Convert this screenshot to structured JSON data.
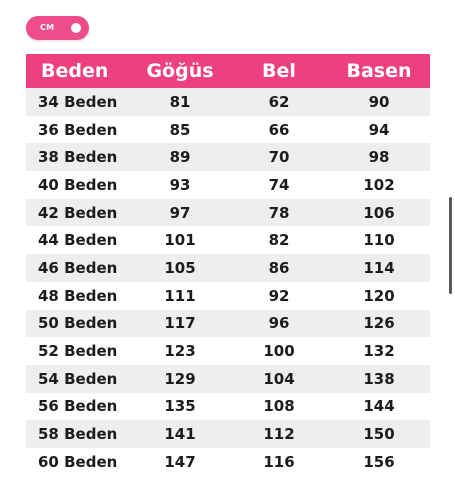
{
  "unit_toggle": {
    "label": "CM"
  },
  "table": {
    "headers": [
      "Beden",
      "Göğüs",
      "Bel",
      "Basen"
    ],
    "rows": [
      [
        "34 Beden",
        "81",
        "62",
        "90"
      ],
      [
        "36 Beden",
        "85",
        "66",
        "94"
      ],
      [
        "38 Beden",
        "89",
        "70",
        "98"
      ],
      [
        "40 Beden",
        "93",
        "74",
        "102"
      ],
      [
        "42 Beden",
        "97",
        "78",
        "106"
      ],
      [
        "44 Beden",
        "101",
        "82",
        "110"
      ],
      [
        "46 Beden",
        "105",
        "86",
        "114"
      ],
      [
        "48 Beden",
        "111",
        "92",
        "120"
      ],
      [
        "50 Beden",
        "117",
        "96",
        "126"
      ],
      [
        "52 Beden",
        "123",
        "100",
        "132"
      ],
      [
        "54 Beden",
        "129",
        "104",
        "138"
      ],
      [
        "56 Beden",
        "135",
        "108",
        "144"
      ],
      [
        "58 Beden",
        "141",
        "112",
        "150"
      ],
      [
        "60 Beden",
        "147",
        "116",
        "156"
      ]
    ]
  },
  "colors": {
    "accent": "#ee3f7f",
    "row_stripe": "#eeeeee",
    "text": "#1c1c1c"
  }
}
